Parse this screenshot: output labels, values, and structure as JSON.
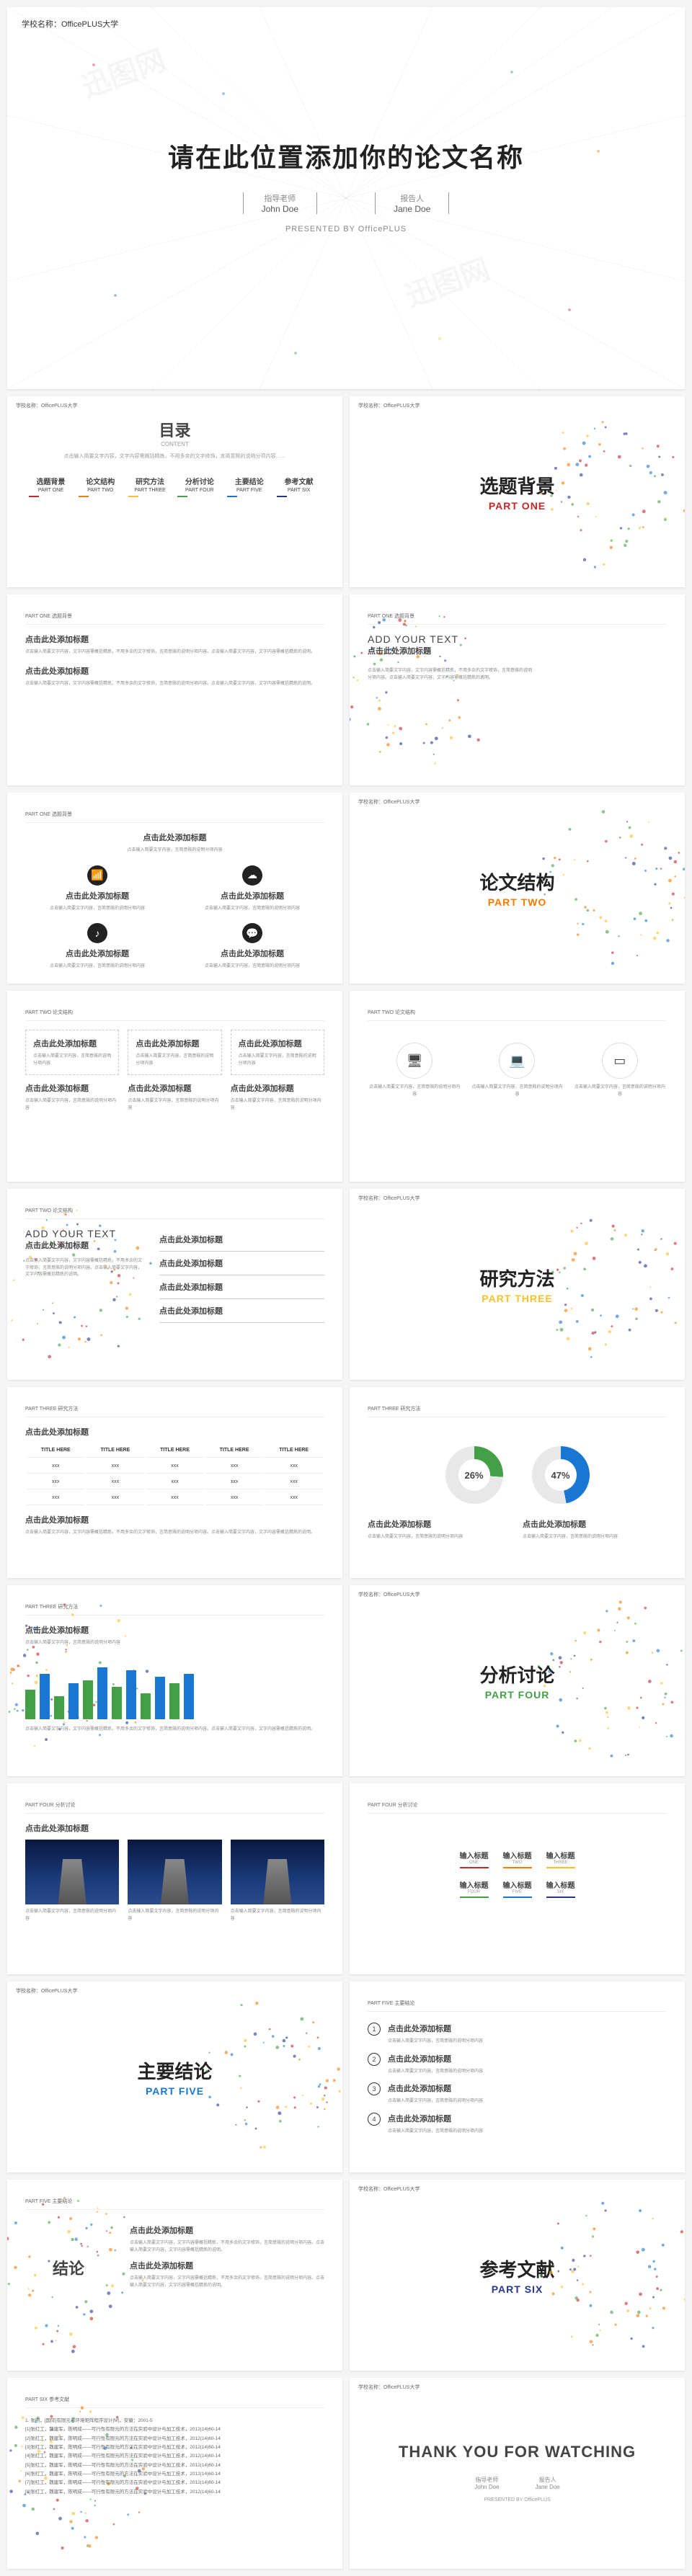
{
  "school_label": "学校名称：OfficePLUS大学",
  "cover": {
    "title": "请在此位置添加你的论文名称",
    "advisor_role": "指导老师",
    "advisor_name": "John Doe",
    "reporter_role": "报告人",
    "reporter_name": "Jane Doe",
    "presented": "PRESENTED BY OfficePLUS"
  },
  "watermark": "迅图网",
  "toc": {
    "title": "目录",
    "sub": "CONTENT",
    "desc": "点击输入简要文字内容，文字内容需概括精炼，不用多余的文字修饰，言简意赅的说明分项内容……",
    "items": [
      {
        "cn": "选题背景",
        "en": "PART ONE",
        "color": "#c62828"
      },
      {
        "cn": "论文结构",
        "en": "PART TWO",
        "color": "#f57c00"
      },
      {
        "cn": "研究方法",
        "en": "PART THREE",
        "color": "#fbc02d"
      },
      {
        "cn": "分析讨论",
        "en": "PART FOUR",
        "color": "#43a047"
      },
      {
        "cn": "主要结论",
        "en": "PART FIVE",
        "color": "#1976d2"
      },
      {
        "cn": "参考文献",
        "en": "PART SIX",
        "color": "#283593"
      }
    ]
  },
  "sections": [
    {
      "cn": "选题背景",
      "en": "PART ONE",
      "color": "#c62828"
    },
    {
      "cn": "论文结构",
      "en": "PART TWO",
      "color": "#f57c00"
    },
    {
      "cn": "研究方法",
      "en": "PART THREE",
      "color": "#fbc02d"
    },
    {
      "cn": "分析讨论",
      "en": "PART FOUR",
      "color": "#43a047"
    },
    {
      "cn": "主要结论",
      "en": "PART FIVE",
      "color": "#1976d2"
    },
    {
      "cn": "参考文献",
      "en": "PART SIX",
      "color": "#283593"
    }
  ],
  "common": {
    "click_title": "点击此处添加标题",
    "add_text": "ADD YOUR TEXT",
    "lorem": "点击输入简要文字内容，文字内容需概括精炼，不用多余的文字修饰，言简意赅的说明分项内容。点击输入简要文字内容，文字内容需概括精炼的说明。",
    "short": "点击输入简要文字内容，言简意赅的说明分项内容",
    "input_title": "输入标题"
  },
  "part_header": {
    "one": "PART ONE 选题背景",
    "two": "PART TWO 论文结构",
    "three": "PART THREE 研究方法",
    "four": "PART FOUR 分析讨论",
    "five": "PART FIVE 主要结论",
    "six": "PART SIX 参考文献"
  },
  "table": {
    "cols": [
      "TITLE HERE",
      "TITLE HERE",
      "TITLE HERE",
      "TITLE HERE",
      "TITLE HERE"
    ],
    "rows": [
      [
        "xxx",
        "xxx",
        "xxx",
        "xxx",
        "xxx"
      ],
      [
        "xxx",
        "xxx",
        "xxx",
        "xxx",
        "xxx"
      ],
      [
        "xxx",
        "xxx",
        "xxx",
        "xxx",
        "xxx"
      ]
    ]
  },
  "donuts": [
    {
      "pct": "26%",
      "color": "#43a047",
      "deg": 94
    },
    {
      "pct": "47%",
      "color": "#1976d2",
      "deg": 169
    }
  ],
  "bar_chart": {
    "values": [
      45,
      70,
      35,
      55,
      60,
      80,
      50,
      75,
      40,
      65,
      55,
      70
    ],
    "colors": [
      "#43a047",
      "#1976d2",
      "#43a047",
      "#1976d2",
      "#43a047",
      "#1976d2",
      "#43a047",
      "#1976d2",
      "#43a047",
      "#1976d2",
      "#43a047",
      "#1976d2"
    ]
  },
  "tags": [
    {
      "t": "输入标题",
      "s": "ONE",
      "c": "#c62828"
    },
    {
      "t": "输入标题",
      "s": "TWO",
      "c": "#f57c00"
    },
    {
      "t": "输入标题",
      "s": "THREE",
      "c": "#fbc02d"
    },
    {
      "t": "输入标题",
      "s": "FOUR",
      "c": "#43a047"
    },
    {
      "t": "输入标题",
      "s": "FIVE",
      "c": "#1976d2"
    },
    {
      "t": "输入标题",
      "s": "SIX",
      "c": "#283593"
    }
  ],
  "conclusion": "结论",
  "refs": [
    "1. 张明，[国际]有限元与环境矩阵程序设计[M]，安徽：2001-5",
    "[1]张红工，魏建军，陈明成——可行性有限元的方法在实验中设计与加工技术，2012(14)60-14",
    "[2]张红工，魏建军，陈明成——可行性有限元的方法在实验中设计与加工技术，2012(14)60-14",
    "[3]张红工，魏建军，陈明成——可行性有限元的方法在实验中设计与加工技术，2012(14)60-14",
    "[4]张红工，魏建军，陈明成——可行性有限元的方法在实验中设计与加工技术，2012(14)60-14",
    "[5]张红工，魏建军，陈明成——可行性有限元的方法在实验中设计与加工技术，2012(14)60-14",
    "[6]张红工，魏建军，陈明成——可行性有限元的方法在实验中设计与加工技术，2012(14)60-14",
    "[7]张红工，魏建军，陈明成——可行性有限元的方法在实验中设计与加工技术，2012(14)60-14",
    "[8]张红工，魏建军，陈明成——可行性有限元的方法在实验中设计与加工技术，2012(14)60-14"
  ],
  "thanks": {
    "title": "THANK YOU FOR WATCHING",
    "advisor_role": "指导老师",
    "advisor_name": "John Doe",
    "reporter_role": "报告人",
    "reporter_name": "Jane Doe",
    "presented": "PRESENTED BY OfficePLUS"
  }
}
